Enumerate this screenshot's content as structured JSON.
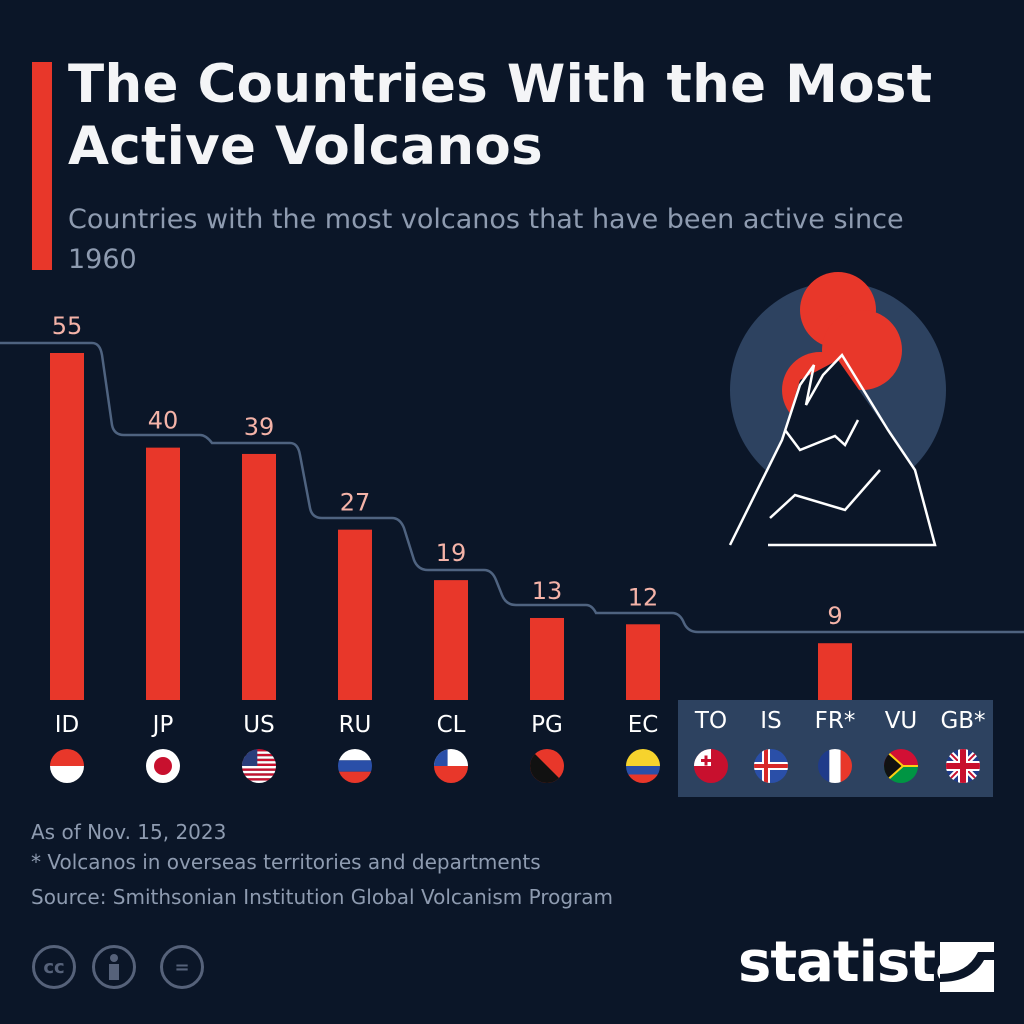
{
  "header": {
    "title": "The Countries With the Most Active Volcanos",
    "subtitle": "Countries with the most volcanos that have been active since 1960"
  },
  "chart_data": {
    "type": "bar",
    "title": "The Countries With the Most Active Volcanos",
    "subtitle": "Countries with the most volcanos that have been active since 1960",
    "categories": [
      "ID",
      "JP",
      "US",
      "RU",
      "CL",
      "PG",
      "EC",
      "TO",
      "IS",
      "FR*",
      "VU",
      "GB*"
    ],
    "values": [
      55,
      40,
      39,
      27,
      19,
      13,
      12,
      9,
      9,
      9,
      9,
      9
    ],
    "grouped_value_label": "9",
    "grouped_categories": [
      "TO",
      "IS",
      "FR*",
      "VU",
      "GB*"
    ],
    "ylim": [
      0,
      55
    ],
    "grid": false,
    "bar_color": "#e8372a",
    "label_color": "#f4b3a8"
  },
  "footer": {
    "date": "As of Nov. 15, 2023",
    "note": "* Volcanos in overseas territories and departments",
    "source": "Source: Smithsonian Institution Global Volcanism Program"
  },
  "license_icons": [
    "cc-icon",
    "attribution-icon",
    "no-derivatives-icon"
  ],
  "license_text": {
    "cc": "cc",
    "nd": "="
  },
  "brand": {
    "name": "statista"
  },
  "colors": {
    "background": "#0b1628",
    "accent": "#e8372a",
    "panel": "#2d4260"
  }
}
